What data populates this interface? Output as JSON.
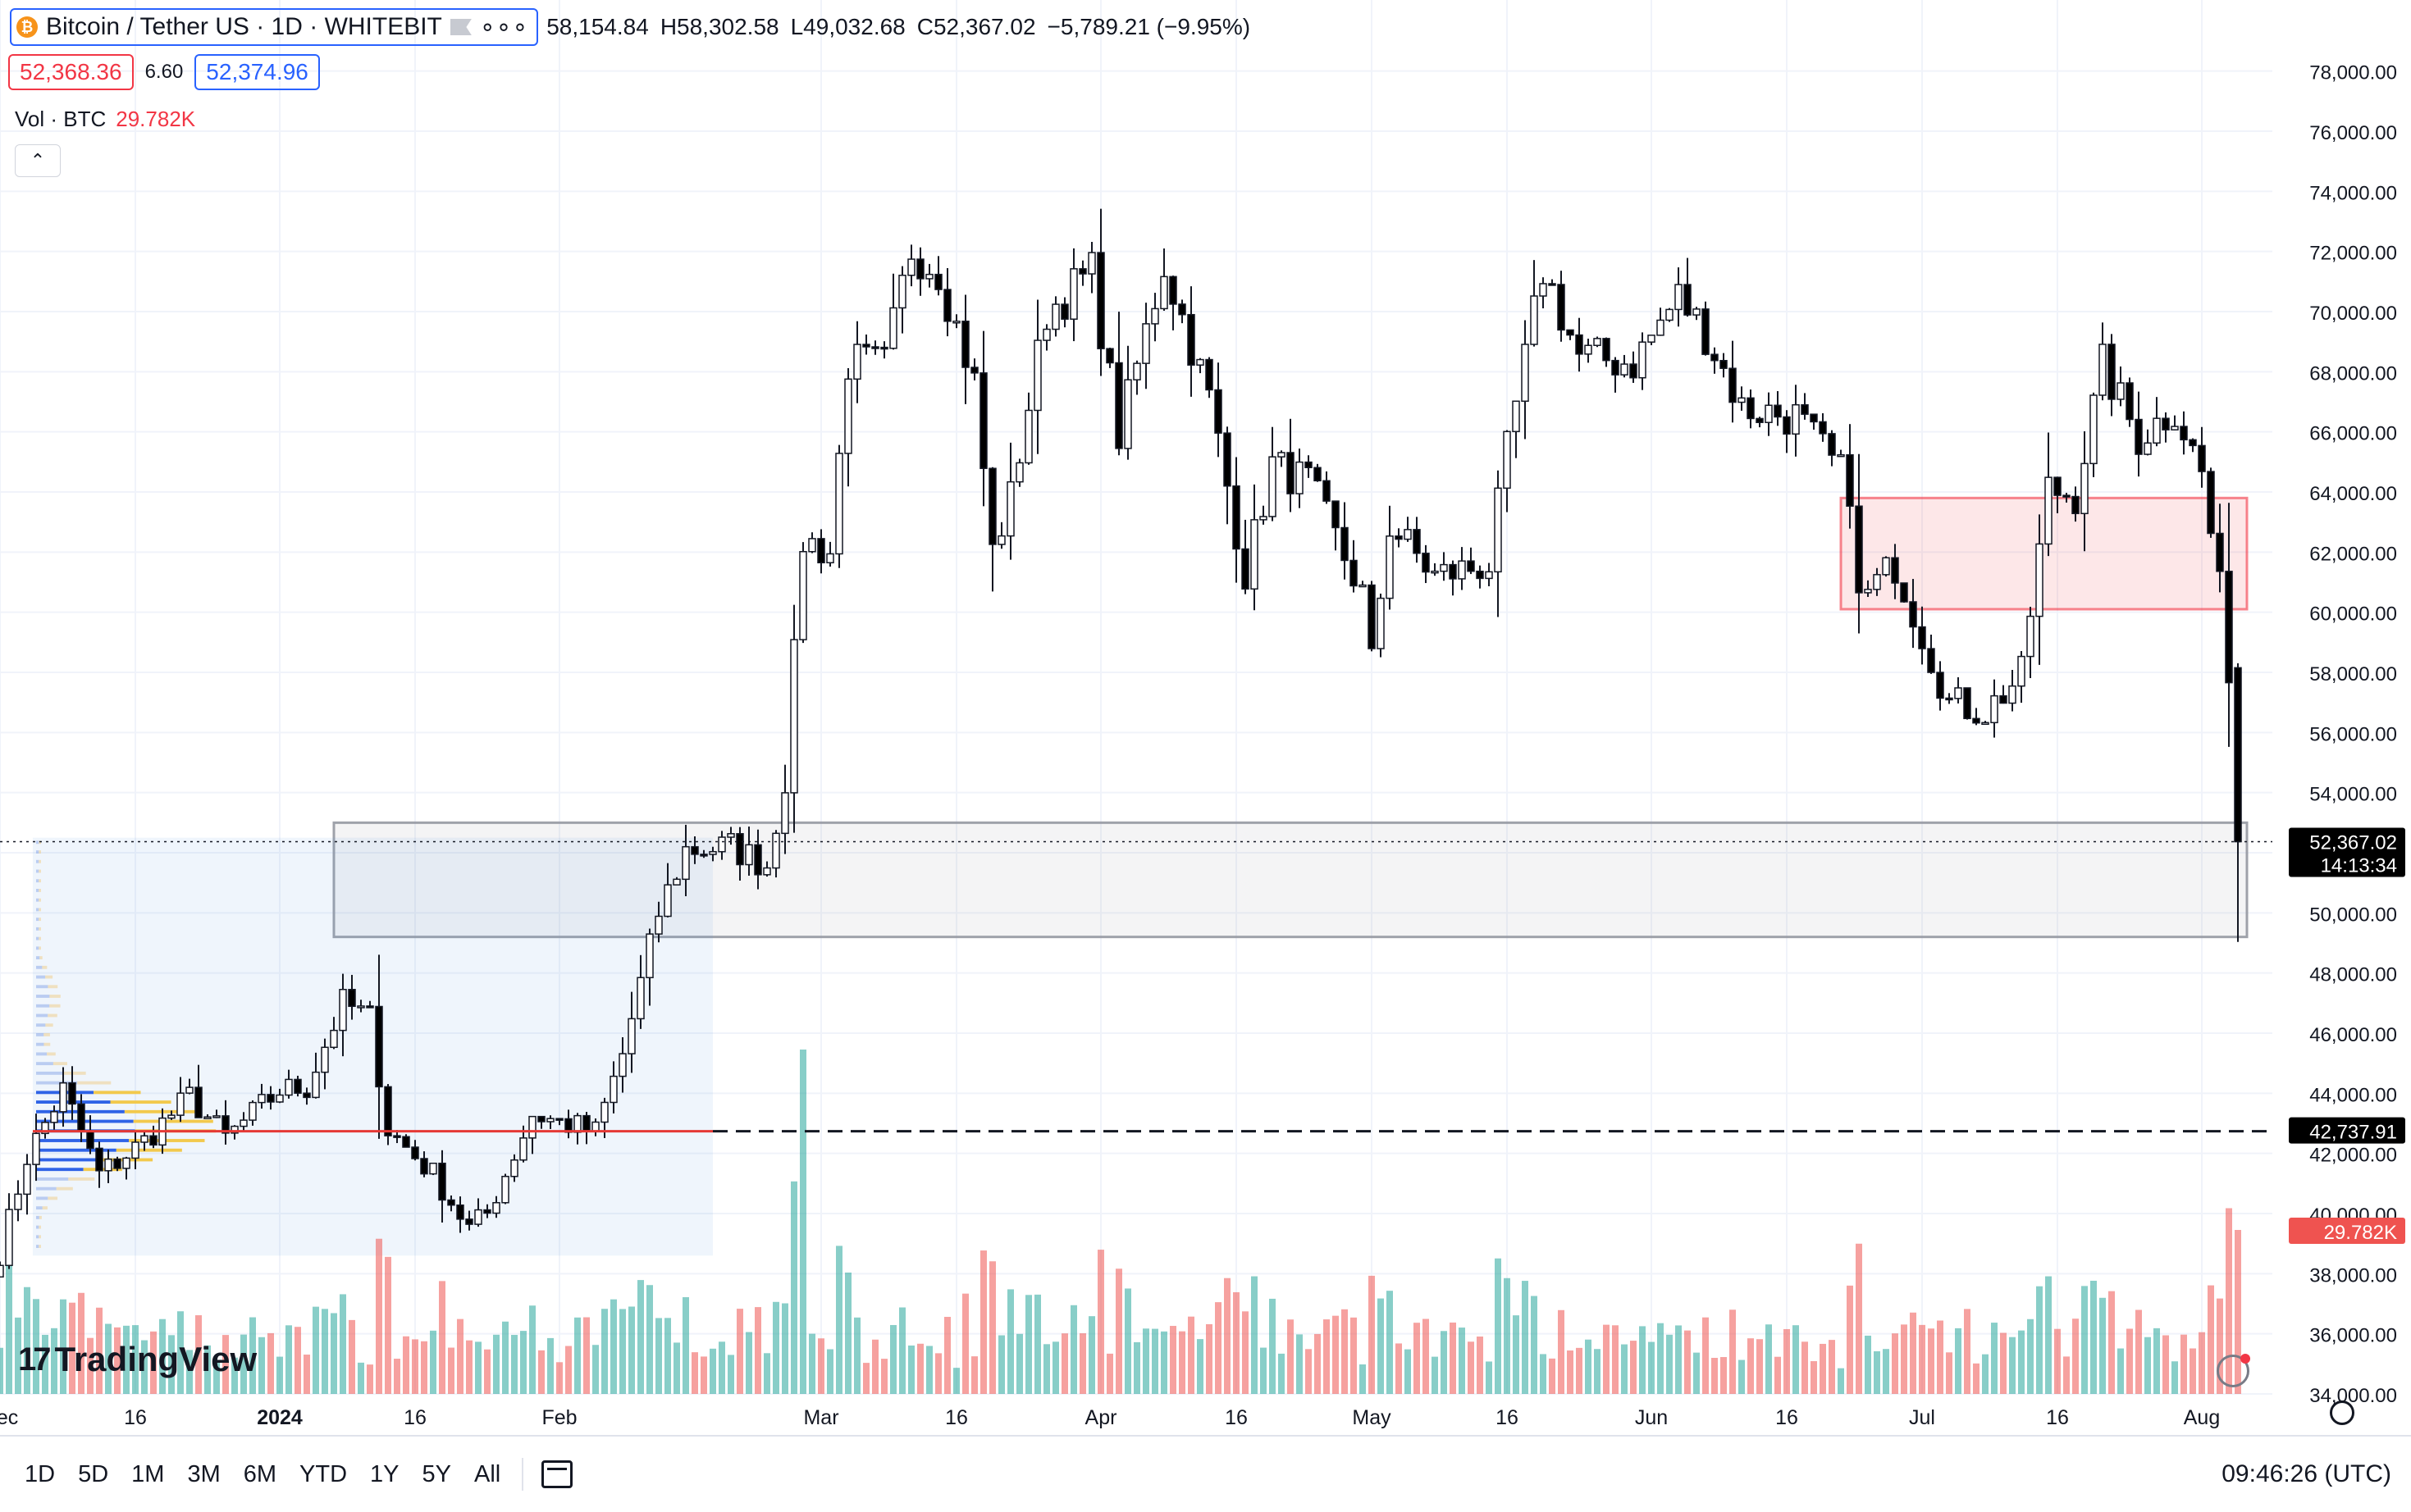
{
  "header": {
    "symbol": "Bitcoin / Tether US · 1D · WHITEBIT",
    "coin_glyph": "₿",
    "more": "∘∘∘",
    "open": "58,154.84",
    "high": "H58,302.58",
    "low": "L49,032.68",
    "close": "C52,367.02",
    "change": "−5,789.21 (−9.95%)"
  },
  "quote": {
    "sell": "52,368.36",
    "spread": "6.60",
    "buy": "52,374.96"
  },
  "volume_legend": {
    "label": "Vol · BTC",
    "value": "29.782K"
  },
  "collapse_label": "⌃",
  "logo": {
    "mark": "17",
    "text": "TradingView"
  },
  "toolbar": {
    "timeframes": [
      "1D",
      "5D",
      "1M",
      "3M",
      "6M",
      "YTD",
      "1Y",
      "5Y",
      "All"
    ],
    "clock": "09:46:26 (UTC)"
  },
  "colors": {
    "up": "#26a69a",
    "down": "#000000",
    "vol_up": "#26a69a",
    "vol_down": "#ef5350",
    "poc": "#e53935",
    "zone_red": "#f23645",
    "zone_gray": "#9598a1"
  },
  "chart_data": {
    "type": "candlestick",
    "price_axis": {
      "min": 34000,
      "max": 79000,
      "ticks": [
        34000,
        36000,
        38000,
        40000,
        42000,
        44000,
        46000,
        48000,
        50000,
        52000,
        54000,
        56000,
        58000,
        60000,
        62000,
        64000,
        66000,
        68000,
        70000,
        72000,
        74000,
        76000,
        78000
      ],
      "tick_labels": [
        "34,000.00",
        "36,000.00",
        "38,000.00",
        "40,000.00",
        "42,000.00",
        "44,000.00",
        "46,000.00",
        "48,000.00",
        "50,000.00",
        "52,000.00",
        "54,000.00",
        "56,000.00",
        "58,000.00",
        "60,000.00",
        "62,000.00",
        "64,000.00",
        "66,000.00",
        "68,000.00",
        "70,000.00",
        "72,000.00",
        "74,000.00",
        "76,000.00",
        "78,000.00"
      ]
    },
    "time_axis": {
      "start": "2023-12-01",
      "end": "2024-08-06",
      "labels": [
        {
          "date": "2023-12-01",
          "text": "Dec"
        },
        {
          "date": "2023-12-16",
          "text": "16"
        },
        {
          "date": "2024-01-01",
          "text": "2024"
        },
        {
          "date": "2024-01-16",
          "text": "16"
        },
        {
          "date": "2024-02-01",
          "text": "Feb"
        },
        {
          "date": "2024-03-01",
          "text": "Mar"
        },
        {
          "date": "2024-03-16",
          "text": "16"
        },
        {
          "date": "2024-04-01",
          "text": "Apr"
        },
        {
          "date": "2024-04-16",
          "text": "16"
        },
        {
          "date": "2024-05-01",
          "text": "May"
        },
        {
          "date": "2024-05-16",
          "text": "16"
        },
        {
          "date": "2024-06-01",
          "text": "Jun"
        },
        {
          "date": "2024-06-16",
          "text": "16"
        },
        {
          "date": "2024-07-01",
          "text": "Jul"
        },
        {
          "date": "2024-07-16",
          "text": "16"
        },
        {
          "date": "2024-08-01",
          "text": "Aug"
        }
      ]
    },
    "close_path": [
      [
        "2023-12-01",
        38700
      ],
      [
        "2023-12-04",
        41900
      ],
      [
        "2023-12-08",
        44100
      ],
      [
        "2023-12-12",
        41300
      ],
      [
        "2023-12-17",
        42400
      ],
      [
        "2023-12-22",
        43900
      ],
      [
        "2023-12-26",
        42500
      ],
      [
        "2024-01-01",
        44100
      ],
      [
        "2024-01-04",
        44200
      ],
      [
        "2024-01-08",
        47000
      ],
      [
        "2024-01-11",
        46500
      ],
      [
        "2024-01-13",
        42800
      ],
      [
        "2024-01-18",
        41300
      ],
      [
        "2024-01-22",
        39500
      ],
      [
        "2024-01-24",
        40000
      ],
      [
        "2024-01-29",
        43300
      ],
      [
        "2024-02-05",
        42700
      ],
      [
        "2024-02-08",
        45300
      ],
      [
        "2024-02-12",
        50000
      ],
      [
        "2024-02-15",
        52100
      ],
      [
        "2024-02-20",
        52200
      ],
      [
        "2024-02-24",
        51600
      ],
      [
        "2024-02-26",
        54500
      ],
      [
        "2024-02-28",
        62400
      ],
      [
        "2024-03-02",
        62000
      ],
      [
        "2024-03-04",
        68300
      ],
      [
        "2024-03-08",
        68200
      ],
      [
        "2024-03-11",
        72100
      ],
      [
        "2024-03-14",
        71400
      ],
      [
        "2024-03-18",
        67600
      ],
      [
        "2024-03-20",
        62000
      ],
      [
        "2024-03-22",
        63800
      ],
      [
        "2024-03-26",
        70000
      ],
      [
        "2024-03-31",
        71300
      ],
      [
        "2024-04-03",
        65900
      ],
      [
        "2024-04-08",
        71600
      ],
      [
        "2024-04-13",
        67100
      ],
      [
        "2024-04-17",
        61300
      ],
      [
        "2024-04-20",
        64900
      ],
      [
        "2024-04-24",
        64300
      ],
      [
        "2024-04-30",
        60600
      ],
      [
        "2024-05-01",
        58300
      ],
      [
        "2024-05-03",
        62900
      ],
      [
        "2024-05-08",
        61200
      ],
      [
        "2024-05-14",
        61600
      ],
      [
        "2024-05-16",
        65300
      ],
      [
        "2024-05-20",
        71400
      ],
      [
        "2024-05-24",
        68500
      ],
      [
        "2024-05-30",
        68300
      ],
      [
        "2024-06-04",
        70500
      ],
      [
        "2024-06-07",
        69300
      ],
      [
        "2024-06-11",
        66800
      ],
      [
        "2024-06-17",
        66500
      ],
      [
        "2024-06-23",
        64200
      ],
      [
        "2024-06-24",
        60300
      ],
      [
        "2024-06-28",
        61600
      ],
      [
        "2024-07-04",
        57000
      ],
      [
        "2024-07-08",
        56700
      ],
      [
        "2024-07-12",
        57900
      ],
      [
        "2024-07-15",
        64100
      ],
      [
        "2024-07-18",
        63900
      ],
      [
        "2024-07-21",
        68200
      ],
      [
        "2024-07-25",
        65800
      ],
      [
        "2024-07-29",
        66800
      ],
      [
        "2024-08-01",
        64600
      ],
      [
        "2024-08-03",
        60700
      ],
      [
        "2024-08-04",
        58200
      ],
      [
        "2024-08-05",
        52367
      ]
    ],
    "last_candle": {
      "date": "2024-08-05",
      "open": 58154.84,
      "high": 58302.58,
      "low": 49032.68,
      "close": 52367.02
    },
    "volume_peak": {
      "date": "2024-02-28",
      "value": "spike"
    },
    "last_volume": "29.782K",
    "price_labels": [
      {
        "value": 52367.02,
        "text": "52,367.02",
        "countdown": "14:13:34"
      },
      {
        "value": 42737.91,
        "text": "42,737.91"
      },
      {
        "text": "29.782K"
      }
    ],
    "poc_level": 42737.91,
    "zones": [
      {
        "kind": "gray",
        "from": "2024-01-07",
        "to": "2024-08-06",
        "low": 49200,
        "high": 53000
      },
      {
        "kind": "red",
        "from": "2024-06-22",
        "to": "2024-08-06",
        "low": 60100,
        "high": 63800
      }
    ],
    "volume_profile_range": {
      "from": "2023-12-01",
      "to": "2024-02-18",
      "low": 38600,
      "high": 52500
    },
    "grid": true
  }
}
